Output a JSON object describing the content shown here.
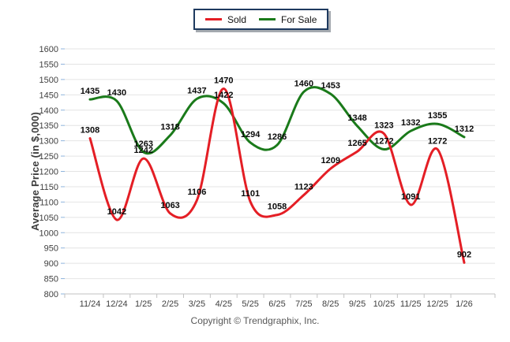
{
  "window": {
    "background": "#ffffff"
  },
  "legend": {
    "items": [
      {
        "label": "Sold",
        "color": "#e41e25"
      },
      {
        "label": "For Sale",
        "color": "#1a7a1a"
      }
    ],
    "border_color": "#1e3a5f"
  },
  "chart_data": {
    "type": "line",
    "title": "",
    "categories": [
      "11/24",
      "12/24",
      "1/25",
      "2/25",
      "3/25",
      "4/25",
      "5/25",
      "6/25",
      "7/25",
      "8/25",
      "9/25",
      "10/25",
      "11/25",
      "12/25",
      "1/26"
    ],
    "series": [
      {
        "name": "Sold",
        "color": "#e41e25",
        "values": [
          1308,
          1042,
          1242,
          1063,
          1106,
          1470,
          1101,
          1058,
          1123,
          1209,
          1265,
          1323,
          1091,
          1272,
          902
        ]
      },
      {
        "name": "For Sale",
        "color": "#1a7a1a",
        "values": [
          1435,
          1430,
          1263,
          1318,
          1437,
          1422,
          1294,
          1286,
          1460,
          1453,
          1348,
          1272,
          1332,
          1355,
          1312
        ]
      }
    ],
    "xlabel": "",
    "ylabel": "Average Price (in $,000)",
    "ylim": [
      800,
      1600
    ],
    "ytick_step": 50,
    "grid": true,
    "smooth": true,
    "data_labels": true,
    "legend_position": "top-center",
    "colors": {
      "gridline": "#e4e4e4",
      "axis": "#c2c2c2",
      "y_tick_mark": "#8fb4dc",
      "tick_label": "#3f3f3f",
      "data_label": "#0a0a0a"
    }
  },
  "footer": {
    "copyright": "Copyright © Trendgraphix, Inc."
  }
}
